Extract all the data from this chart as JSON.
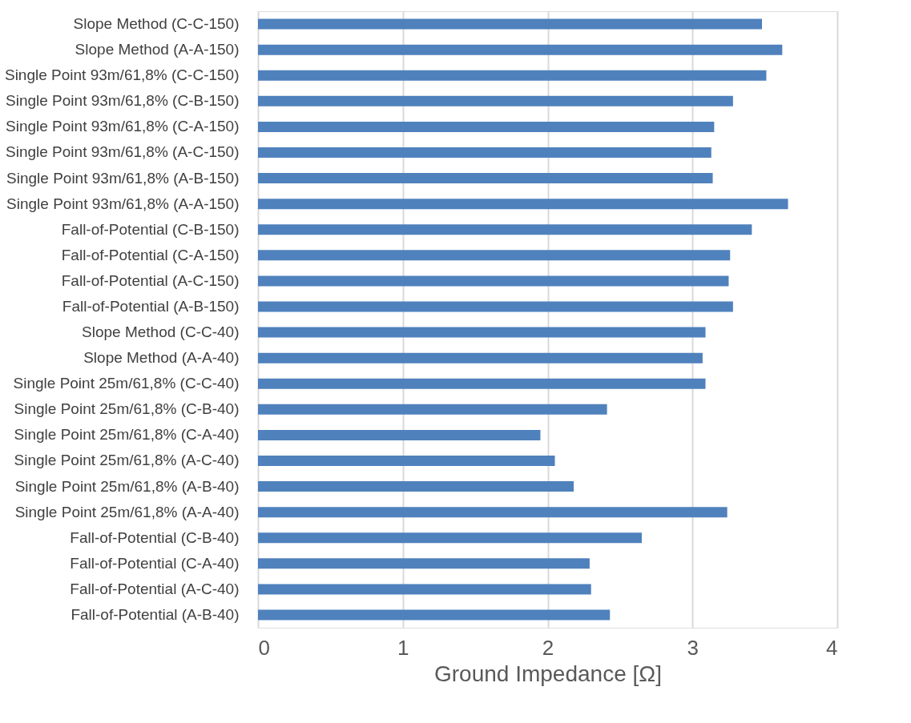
{
  "chart_data": {
    "type": "bar",
    "orientation": "horizontal",
    "xlabel": "Ground Impedance [Ω]",
    "categories": [
      "Slope Method (C-C-150)",
      "Slope Method (A-A-150)",
      "Single Point 93m/61,8% (C-C-150)",
      "Single Point 93m/61,8% (C-B-150)",
      "Single Point 93m/61,8% (C-A-150)",
      "Single Point 93m/61,8% (A-C-150)",
      "Single Point 93m/61,8% (A-B-150)",
      "Single Point 93m/61,8% (A-A-150)",
      "Fall-of-Potential (C-B-150)",
      "Fall-of-Potential (C-A-150)",
      "Fall-of-Potential (A-C-150)",
      "Fall-of-Potential (A-B-150)",
      "Slope Method (C-C-40)",
      "Slope Method (A-A-40)",
      "Single Point 25m/61,8% (C-C-40)",
      "Single Point 25m/61,8% (C-B-40)",
      "Single Point 25m/61,8% (C-A-40)",
      "Single Point 25m/61,8% (A-C-40)",
      "Single Point 25m/61,8% (A-B-40)",
      "Single Point 25m/61,8% (A-A-40)",
      "Fall-of-Potential (C-B-40)",
      "Fall-of-Potential (C-A-40)",
      "Fall-of-Potential (A-C-40)",
      "Fall-of-Potential (A-B-40)"
    ],
    "values": [
      3.48,
      3.62,
      3.51,
      3.28,
      3.15,
      3.13,
      3.14,
      3.66,
      3.41,
      3.26,
      3.25,
      3.28,
      3.09,
      3.07,
      3.09,
      2.41,
      1.95,
      2.05,
      2.18,
      3.24,
      2.65,
      2.29,
      2.3,
      2.43
    ],
    "color": "#4f81bd",
    "xlim": [
      0,
      4
    ],
    "xticks": [
      0,
      1,
      2,
      3,
      4
    ],
    "grid": "x"
  }
}
